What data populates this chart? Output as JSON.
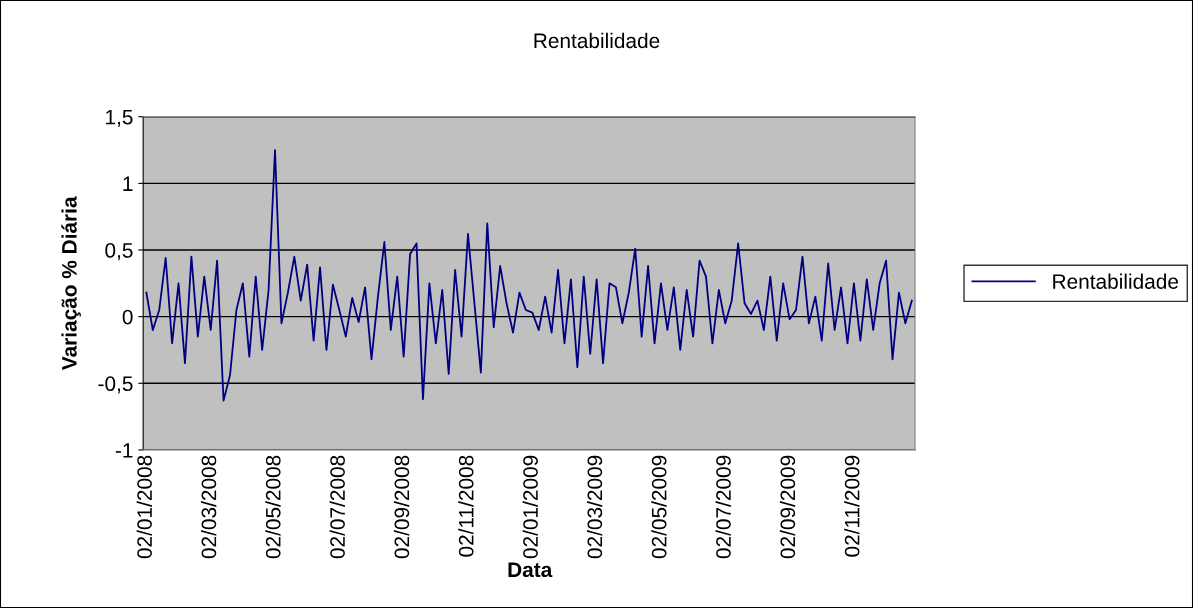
{
  "chart_data": {
    "type": "line",
    "title": "Rentabilidade",
    "xlabel": "Data",
    "ylabel": "Variação % Diária",
    "categories": [
      "02/01/2008",
      null,
      null,
      null,
      null,
      null,
      null,
      null,
      null,
      null,
      "02/03/2008",
      null,
      null,
      null,
      null,
      null,
      null,
      null,
      null,
      null,
      "02/05/2008",
      null,
      null,
      null,
      null,
      null,
      null,
      null,
      null,
      null,
      "02/07/2008",
      null,
      null,
      null,
      null,
      null,
      null,
      null,
      null,
      null,
      "02/09/2008",
      null,
      null,
      null,
      null,
      null,
      null,
      null,
      null,
      null,
      "02/11/2008",
      null,
      null,
      null,
      null,
      null,
      null,
      null,
      null,
      null,
      "02/01/2009",
      null,
      null,
      null,
      null,
      null,
      null,
      null,
      null,
      null,
      "02/03/2009",
      null,
      null,
      null,
      null,
      null,
      null,
      null,
      null,
      null,
      "02/05/2009",
      null,
      null,
      null,
      null,
      null,
      null,
      null,
      null,
      null,
      "02/07/2009",
      null,
      null,
      null,
      null,
      null,
      null,
      null,
      null,
      null,
      "02/09/2009",
      null,
      null,
      null,
      null,
      null,
      null,
      null,
      null,
      null,
      "02/11/2009",
      null,
      null,
      null,
      null,
      null,
      null,
      null,
      null,
      null
    ],
    "series": [
      {
        "name": "Rentabilidade",
        "color": "#000080",
        "values": [
          0.18,
          -0.1,
          0.05,
          0.44,
          -0.2,
          0.25,
          -0.35,
          0.45,
          -0.15,
          0.3,
          -0.1,
          0.42,
          -0.63,
          -0.44,
          0.05,
          0.25,
          -0.3,
          0.3,
          -0.25,
          0.2,
          1.25,
          -0.05,
          0.18,
          0.45,
          0.12,
          0.39,
          -0.18,
          0.37,
          -0.25,
          0.24,
          0.05,
          -0.15,
          0.14,
          -0.04,
          0.22,
          -0.32,
          0.15,
          0.56,
          -0.1,
          0.3,
          -0.3,
          0.47,
          0.55,
          -0.62,
          0.25,
          -0.2,
          0.2,
          -0.43,
          0.35,
          -0.15,
          0.62,
          0.1,
          -0.42,
          0.7,
          -0.08,
          0.38,
          0.1,
          -0.12,
          0.18,
          0.05,
          0.03,
          -0.1,
          0.15,
          -0.12,
          0.35,
          -0.2,
          0.28,
          -0.38,
          0.3,
          -0.28,
          0.28,
          -0.35,
          0.25,
          0.22,
          -0.05,
          0.18,
          0.51,
          -0.15,
          0.38,
          -0.2,
          0.25,
          -0.1,
          0.22,
          -0.25,
          0.2,
          -0.15,
          0.42,
          0.3,
          -0.2,
          0.2,
          -0.05,
          0.12,
          0.55,
          0.1,
          0.02,
          0.12,
          -0.1,
          0.3,
          -0.18,
          0.25,
          -0.02,
          0.05,
          0.45,
          -0.05,
          0.15,
          -0.18,
          0.4,
          -0.1,
          0.22,
          -0.2,
          0.25,
          -0.18,
          0.28,
          -0.1,
          0.25,
          0.42,
          -0.32,
          0.18,
          -0.05,
          0.12
        ]
      }
    ],
    "ylim": [
      -1,
      1.5
    ],
    "yticks": [
      {
        "value": -1,
        "label": "-1"
      },
      {
        "value": -0.5,
        "label": "-0,5"
      },
      {
        "value": 0,
        "label": "0"
      },
      {
        "value": 0.5,
        "label": "0,5"
      },
      {
        "value": 1,
        "label": "1"
      },
      {
        "value": 1.5,
        "label": "1,5"
      }
    ],
    "grid": "y",
    "legend": "right",
    "marker": "none",
    "line_style": "solid"
  }
}
